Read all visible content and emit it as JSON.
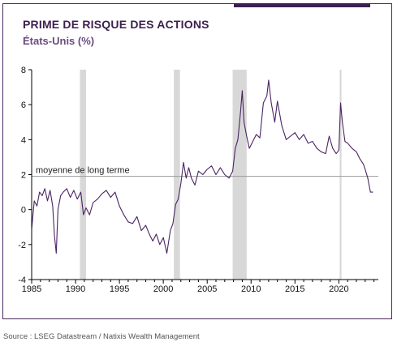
{
  "header": {
    "title": "PRIME DE RISQUE DES ACTIONS",
    "subtitle": "États-Unis (%)"
  },
  "footer": {
    "source": "Source : LSEG Datastream / Natixis Wealth Management"
  },
  "colors": {
    "line": "#4a2463",
    "recession": "#d8d8d8",
    "frame": "#4b2a5e",
    "reference": "#9a9a9a"
  },
  "chart_data": {
    "type": "line",
    "title": "PRIME DE RISQUE DES ACTIONS",
    "subtitle": "États-Unis (%)",
    "xlim": [
      1985,
      2024.5
    ],
    "ylim": [
      -4,
      8
    ],
    "x_ticks": [
      1985,
      1990,
      1995,
      2000,
      2005,
      2010,
      2015,
      2020
    ],
    "y_ticks": [
      -4,
      -2,
      0,
      2,
      4,
      6,
      8
    ],
    "grid": false,
    "reference_line": {
      "label": "moyenne de long terme",
      "value": 1.9
    },
    "recession_bands": [
      [
        1990.5,
        1991.2
      ],
      [
        2001.2,
        2001.9
      ],
      [
        2007.9,
        2009.5
      ],
      [
        2020.1,
        2020.3
      ]
    ],
    "series": [
      {
        "x": [
          1985.0,
          1985.3,
          1985.6,
          1985.9,
          1986.2,
          1986.5,
          1986.8,
          1987.1,
          1987.4,
          1987.6,
          1987.8,
          1988.0,
          1988.3,
          1988.6,
          1989.0,
          1989.4,
          1989.8,
          1990.2,
          1990.6,
          1990.9,
          1991.2,
          1991.6,
          1992.0,
          1992.5,
          1993.0,
          1993.5,
          1994.0,
          1994.5,
          1995.0,
          1995.5,
          1996.0,
          1996.5,
          1997.0,
          1997.5,
          1998.0,
          1998.4,
          1998.8,
          1999.2,
          1999.6,
          2000.0,
          2000.4,
          2000.8,
          2001.1,
          2001.4,
          2001.7,
          2002.0,
          2002.3,
          2002.6,
          2002.9,
          2003.2,
          2003.6,
          2004.0,
          2004.5,
          2005.0,
          2005.5,
          2006.0,
          2006.5,
          2007.0,
          2007.5,
          2007.9,
          2008.2,
          2008.5,
          2008.8,
          2009.0,
          2009.2,
          2009.5,
          2009.8,
          2010.2,
          2010.6,
          2011.0,
          2011.4,
          2011.8,
          2012.0,
          2012.3,
          2012.7,
          2013.0,
          2013.5,
          2014.0,
          2014.5,
          2015.0,
          2015.5,
          2016.0,
          2016.5,
          2017.0,
          2017.5,
          2018.0,
          2018.5,
          2018.9,
          2019.3,
          2019.7,
          2020.0,
          2020.2,
          2020.4,
          2020.7,
          2021.0,
          2021.5,
          2022.0,
          2022.4,
          2022.8,
          2023.0,
          2023.3,
          2023.6,
          2023.9
        ],
        "values": [
          -1.1,
          0.5,
          0.2,
          1.0,
          0.8,
          1.2,
          0.5,
          1.1,
          0.2,
          -1.5,
          -2.5,
          0.0,
          0.8,
          1.0,
          1.2,
          0.7,
          1.1,
          0.6,
          1.0,
          -0.3,
          0.1,
          -0.3,
          0.4,
          0.6,
          0.9,
          1.1,
          0.7,
          1.0,
          0.2,
          -0.3,
          -0.7,
          -0.8,
          -0.4,
          -1.2,
          -0.9,
          -1.4,
          -1.8,
          -1.4,
          -2.0,
          -1.6,
          -2.5,
          -1.2,
          -0.8,
          0.3,
          0.6,
          1.5,
          2.7,
          1.8,
          2.4,
          1.8,
          1.4,
          2.2,
          2.0,
          2.3,
          2.5,
          2.0,
          2.4,
          2.0,
          1.8,
          2.2,
          3.5,
          4.0,
          5.6,
          6.8,
          5.0,
          4.2,
          3.5,
          3.9,
          4.3,
          4.1,
          6.1,
          6.5,
          7.4,
          6.1,
          5.0,
          6.2,
          4.8,
          4.0,
          4.2,
          4.4,
          4.0,
          4.3,
          3.8,
          3.9,
          3.5,
          3.3,
          3.2,
          4.2,
          3.5,
          3.2,
          3.4,
          6.1,
          5.0,
          3.9,
          3.8,
          3.5,
          3.3,
          2.9,
          2.6,
          2.3,
          1.8,
          1.0,
          1.0
        ]
      }
    ]
  }
}
